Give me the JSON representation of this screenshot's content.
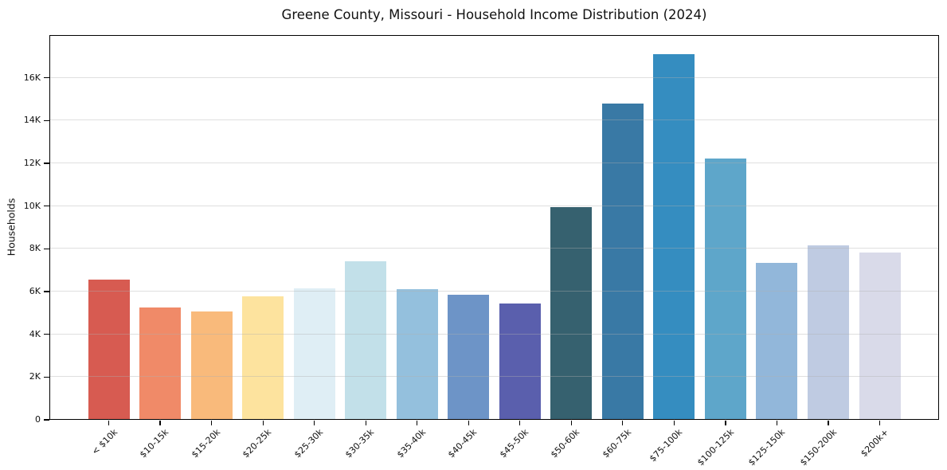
{
  "chart_data": {
    "type": "bar",
    "title": "Greene County, Missouri - Household Income Distribution (2024)",
    "xlabel": "",
    "ylabel": "Households",
    "categories": [
      "< $10k",
      "$10-15k",
      "$15-20k",
      "$20-25k",
      "$25-30k",
      "$30-35k",
      "$35-40k",
      "$40-45k",
      "$45-50k",
      "$50-60k",
      "$60-75k",
      "$75-100k",
      "$100-125k",
      "$125-150k",
      "$150-200k",
      "$200k+"
    ],
    "values": [
      6550,
      5250,
      5070,
      5780,
      6150,
      7410,
      6100,
      5860,
      5430,
      9970,
      14780,
      17110,
      12220,
      7360,
      8170,
      7830
    ],
    "bar_colors": [
      "#d75b51",
      "#f08a68",
      "#f9ba7b",
      "#fde39e",
      "#dfeef5",
      "#c2e0e9",
      "#94c0dd",
      "#6d94c7",
      "#5a5fad",
      "#36616f",
      "#3979a5",
      "#358dc0",
      "#5ea6ca",
      "#92b7da",
      "#bfcbe2",
      "#d9dae9"
    ],
    "yticks": {
      "values": [
        0,
        2000,
        4000,
        6000,
        8000,
        10000,
        12000,
        14000,
        16000
      ],
      "labels": [
        "0",
        "2K",
        "4K",
        "6K",
        "8K",
        "10K",
        "12K",
        "14K",
        "16K"
      ]
    },
    "ylim": [
      0,
      18000
    ],
    "grid": "horizontal, drawn faintly above bars",
    "legend": "none",
    "colors": {
      "background": "#ffffff",
      "spine": "#000000",
      "grid": "#b0b0b0",
      "text": "#1a1a1a"
    }
  }
}
